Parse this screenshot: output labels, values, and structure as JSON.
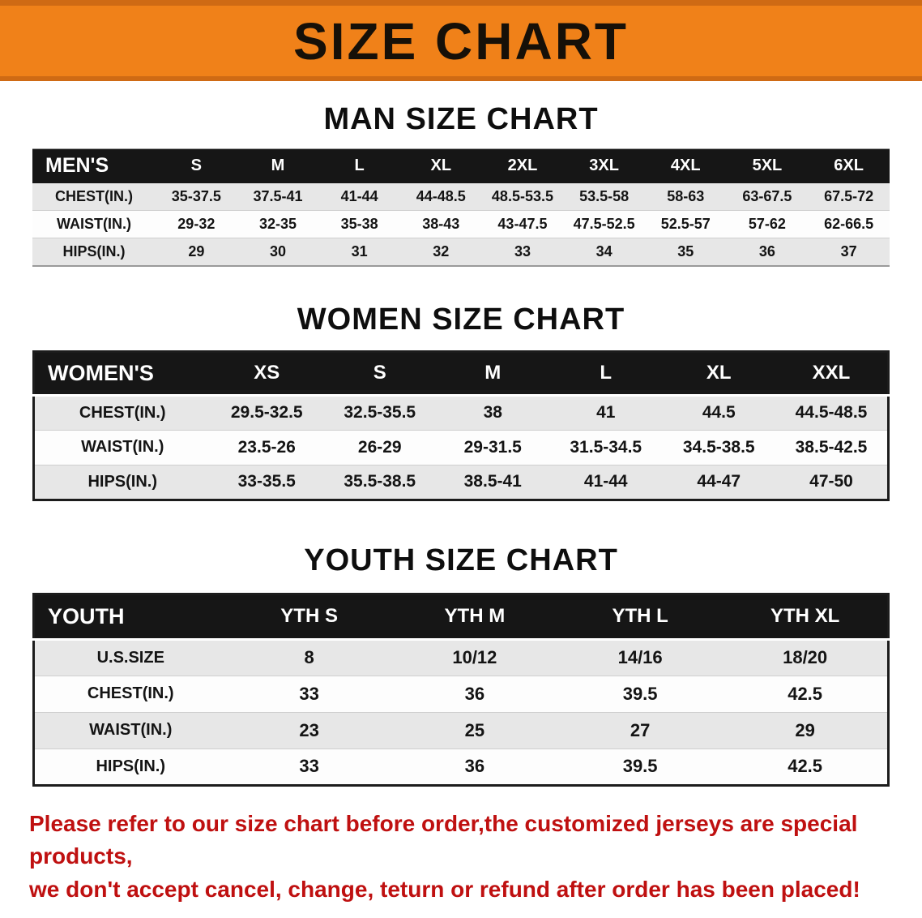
{
  "banner": {
    "title": "SIZE CHART",
    "bg": "#f08119"
  },
  "sections": {
    "men": {
      "heading": "MAN SIZE CHART",
      "header": [
        "MEN'S",
        "S",
        "M",
        "L",
        "XL",
        "2XL",
        "3XL",
        "4XL",
        "5XL",
        "6XL"
      ],
      "rows": [
        {
          "label": "CHEST(IN.)",
          "values": [
            "35-37.5",
            "37.5-41",
            "41-44",
            "44-48.5",
            "48.5-53.5",
            "53.5-58",
            "58-63",
            "63-67.5",
            "67.5-72"
          ]
        },
        {
          "label": "WAIST(IN.)",
          "values": [
            "29-32",
            "32-35",
            "35-38",
            "38-43",
            "43-47.5",
            "47.5-52.5",
            "52.5-57",
            "57-62",
            "62-66.5"
          ]
        },
        {
          "label": "HIPS(IN.)",
          "values": [
            "29",
            "30",
            "31",
            "32",
            "33",
            "34",
            "35",
            "36",
            "37"
          ]
        }
      ]
    },
    "women": {
      "heading": "WOMEN SIZE CHART",
      "header": [
        "WOMEN'S",
        "XS",
        "S",
        "M",
        "L",
        "XL",
        "XXL"
      ],
      "rows": [
        {
          "label": "CHEST(IN.)",
          "values": [
            "29.5-32.5",
            "32.5-35.5",
            "38",
            "41",
            "44.5",
            "44.5-48.5"
          ]
        },
        {
          "label": "WAIST(IN.)",
          "values": [
            "23.5-26",
            "26-29",
            "29-31.5",
            "31.5-34.5",
            "34.5-38.5",
            "38.5-42.5"
          ]
        },
        {
          "label": "HIPS(IN.)",
          "values": [
            "33-35.5",
            "35.5-38.5",
            "38.5-41",
            "41-44",
            "44-47",
            "47-50"
          ]
        }
      ]
    },
    "youth": {
      "heading": "YOUTH SIZE CHART",
      "header": [
        "YOUTH",
        "YTH S",
        "YTH M",
        "YTH L",
        "YTH XL"
      ],
      "rows": [
        {
          "label": "U.S.SIZE",
          "values": [
            "8",
            "10/12",
            "14/16",
            "18/20"
          ]
        },
        {
          "label": "CHEST(IN.)",
          "values": [
            "33",
            "36",
            "39.5",
            "42.5"
          ]
        },
        {
          "label": "WAIST(IN.)",
          "values": [
            "23",
            "25",
            "27",
            "29"
          ]
        },
        {
          "label": "HIPS(IN.)",
          "values": [
            "33",
            "36",
            "39.5",
            "42.5"
          ]
        }
      ]
    }
  },
  "footer": {
    "line1": "Please refer to our size chart before order,the customized jerseys are special products,",
    "line2": "we don't accept cancel, change, teturn or refund after order has been placed!"
  }
}
